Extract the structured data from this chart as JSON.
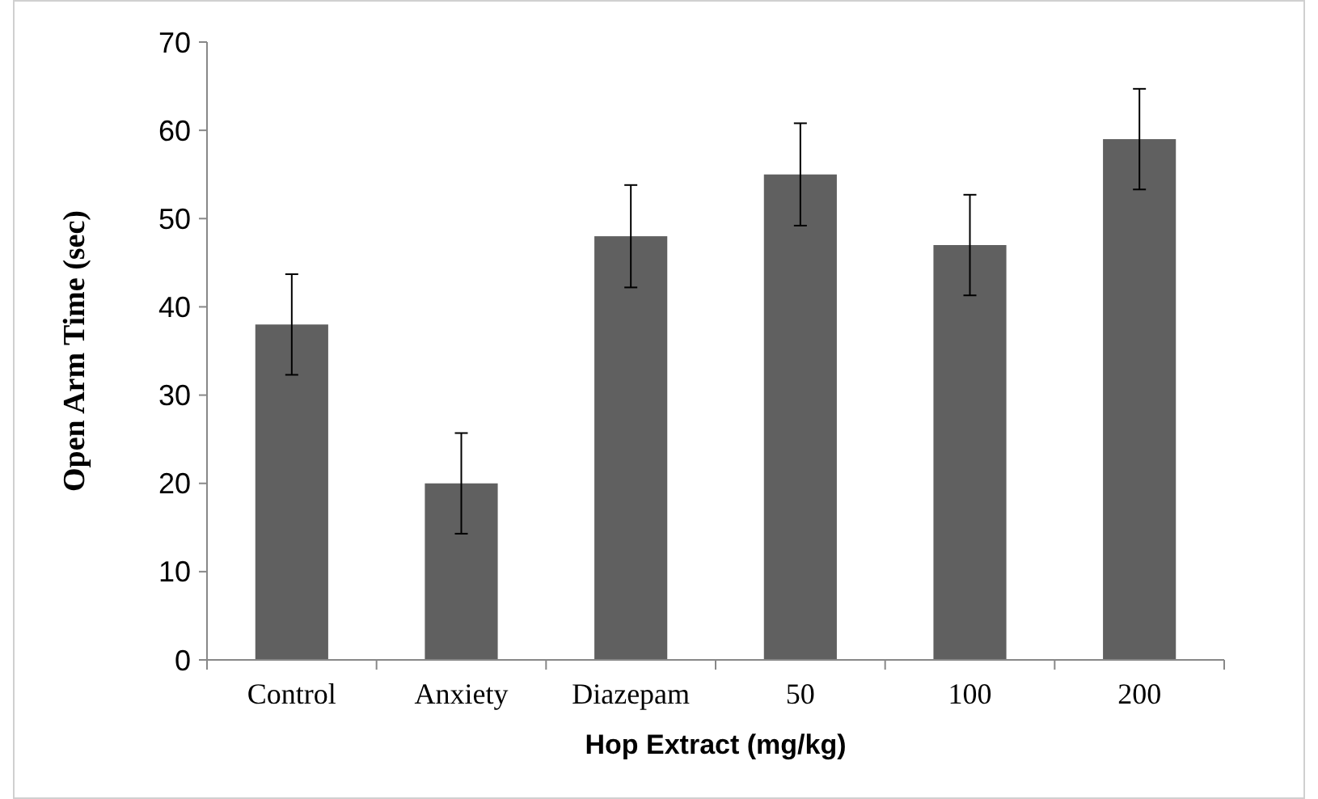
{
  "chart_data": {
    "type": "bar",
    "xlabel": "Hop Extract (mg/kg)",
    "ylabel": "Open Arm Time (sec)",
    "categories": [
      "Control",
      "Anxiety",
      "Diazepam",
      "50",
      "100",
      "200"
    ],
    "values": [
      38,
      20,
      48,
      55,
      47,
      59
    ],
    "errors": [
      5.7,
      5.7,
      5.8,
      5.8,
      5.7,
      5.7
    ],
    "color": "#606060",
    "ylim": [
      0,
      70
    ],
    "yticks": [
      0,
      10,
      20,
      30,
      40,
      50,
      60,
      70
    ],
    "grid": false
  }
}
